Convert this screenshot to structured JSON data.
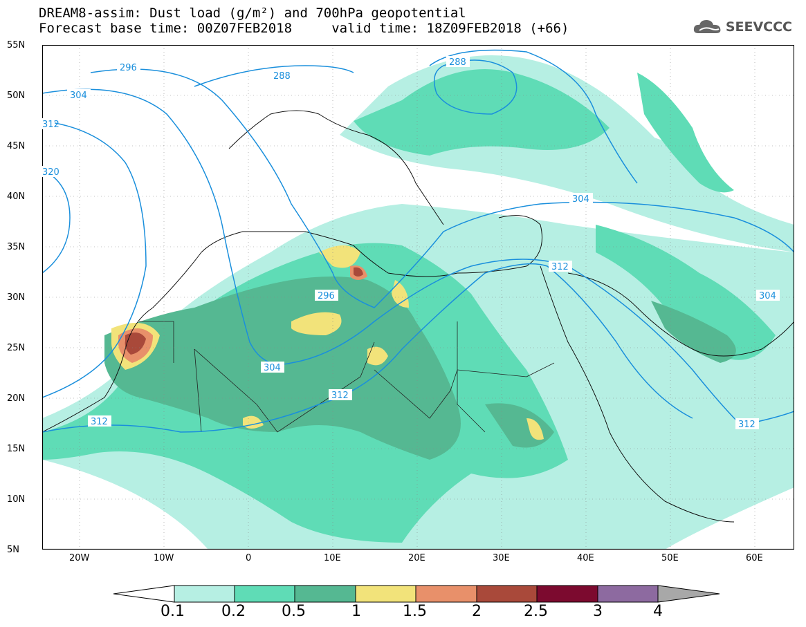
{
  "header": {
    "line1": "DREAM8-assim: Dust load (g/m²) and 700hPa geopotential",
    "line2": "Forecast base time: 00Z07FEB2018     valid time: 18Z09FEB2018 (+66)"
  },
  "logo": {
    "icon": "cloud-icon",
    "text": "SEEVCCC"
  },
  "axes": {
    "lat_labels": [
      "55N",
      "50N",
      "45N",
      "40N",
      "35N",
      "30N",
      "25N",
      "20N",
      "15N",
      "10N",
      "5N"
    ],
    "lon_labels": [
      "20W",
      "10W",
      "0",
      "10E",
      "20E",
      "30E",
      "40E",
      "50E",
      "60E"
    ]
  },
  "contours": {
    "labels": [
      "296",
      "288",
      "304",
      "312",
      "320",
      "288",
      "304",
      "312",
      "296",
      "304",
      "312",
      "312",
      "304",
      "312"
    ]
  },
  "colorbar": {
    "labels": [
      "0.1",
      "0.2",
      "0.5",
      "1",
      "1.5",
      "2",
      "2.5",
      "3",
      "4"
    ],
    "colors": [
      "#ffffff",
      "#b6efe3",
      "#5fdcb6",
      "#55b892",
      "#f2e37a",
      "#e8906a",
      "#a9493a",
      "#7c0a2f",
      "#8d6aa0",
      "#a8a8a8"
    ]
  },
  "colors": {
    "dust_light": "#b6efe3",
    "dust_mid": "#5fdcb6",
    "dust_dark": "#55b892",
    "dust_yellow": "#f2e37a",
    "dust_orange": "#e8906a",
    "dust_brown": "#a9493a",
    "contour": "#1a8fdc"
  }
}
